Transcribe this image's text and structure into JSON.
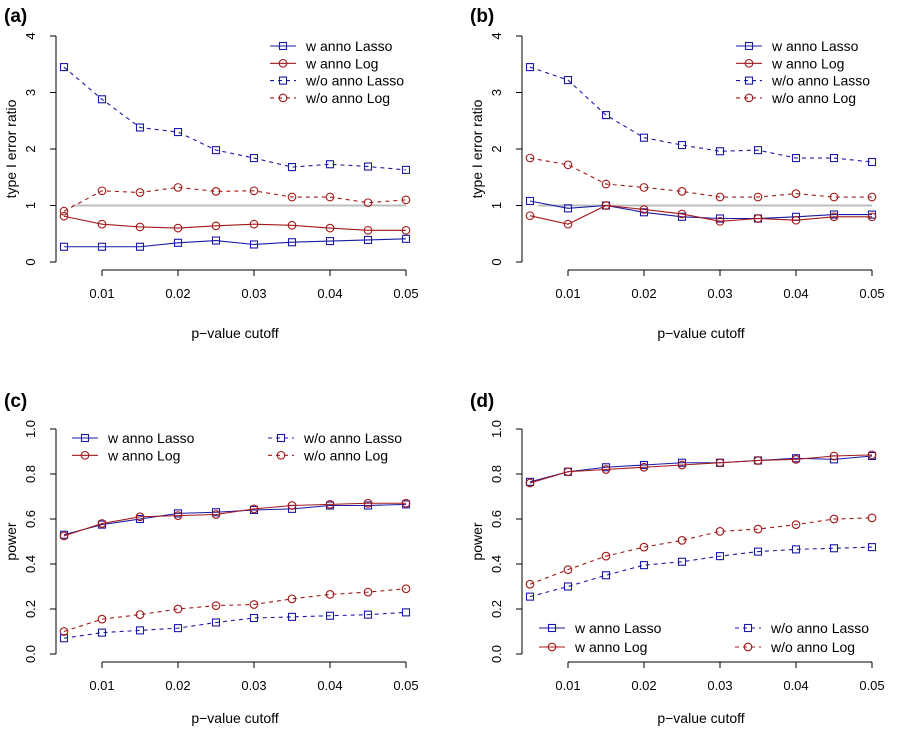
{
  "colors": {
    "lasso": "#1a1aa6",
    "log": "#a31818",
    "refline": "#bdbdbd"
  },
  "chart_data": [
    {
      "panel": "(a)",
      "type": "line",
      "xlabel": "p−value cutoff",
      "ylabel": "type I error ratio",
      "xlim": [
        0.005,
        0.05
      ],
      "ylim": [
        0,
        4
      ],
      "xticks": [
        0.01,
        0.02,
        0.03,
        0.04,
        0.05
      ],
      "xtick_labels": [
        "0.01",
        "0.02",
        "0.03",
        "0.04",
        "0.05"
      ],
      "yticks": [
        0,
        1,
        2,
        3,
        4
      ],
      "ytick_labels": [
        "0",
        "1",
        "2",
        "3",
        "4"
      ],
      "refline": 1,
      "legend_position": "top-right",
      "x": [
        0.005,
        0.01,
        0.015,
        0.02,
        0.025,
        0.03,
        0.035,
        0.04,
        0.045,
        0.05
      ],
      "series": [
        {
          "name": "w anno Lasso",
          "values": [
            0.27,
            0.27,
            0.27,
            0.34,
            0.38,
            0.31,
            0.35,
            0.37,
            0.39,
            0.41
          ]
        },
        {
          "name": "w anno Log",
          "values": [
            0.81,
            0.67,
            0.62,
            0.6,
            0.64,
            0.67,
            0.65,
            0.6,
            0.56,
            0.56
          ]
        },
        {
          "name": "w/o anno Lasso",
          "values": [
            3.45,
            2.88,
            2.38,
            2.3,
            1.98,
            1.84,
            1.68,
            1.73,
            1.69,
            1.63
          ]
        },
        {
          "name": "w/o anno Log",
          "values": [
            0.9,
            1.26,
            1.23,
            1.32,
            1.25,
            1.26,
            1.15,
            1.15,
            1.05,
            1.1
          ]
        }
      ]
    },
    {
      "panel": "(b)",
      "type": "line",
      "xlabel": "p−value cutoff",
      "ylabel": "type I error ratio",
      "xlim": [
        0.005,
        0.05
      ],
      "ylim": [
        0,
        4
      ],
      "xticks": [
        0.01,
        0.02,
        0.03,
        0.04,
        0.05
      ],
      "xtick_labels": [
        "0.01",
        "0.02",
        "0.03",
        "0.04",
        "0.05"
      ],
      "yticks": [
        0,
        1,
        2,
        3,
        4
      ],
      "ytick_labels": [
        "0",
        "1",
        "2",
        "3",
        "4"
      ],
      "refline": 1,
      "legend_position": "top-right",
      "x": [
        0.005,
        0.01,
        0.015,
        0.02,
        0.025,
        0.03,
        0.035,
        0.04,
        0.045,
        0.05
      ],
      "series": [
        {
          "name": "w anno Lasso",
          "values": [
            1.08,
            0.95,
            1.0,
            0.88,
            0.8,
            0.77,
            0.77,
            0.8,
            0.84,
            0.84
          ]
        },
        {
          "name": "w anno Log",
          "values": [
            0.82,
            0.67,
            1.0,
            0.93,
            0.85,
            0.72,
            0.77,
            0.74,
            0.8,
            0.8
          ]
        },
        {
          "name": "w/o anno Lasso",
          "values": [
            3.45,
            3.22,
            2.6,
            2.2,
            2.07,
            1.96,
            1.98,
            1.84,
            1.84,
            1.77
          ]
        },
        {
          "name": "w/o anno Log",
          "values": [
            1.84,
            1.72,
            1.38,
            1.32,
            1.25,
            1.15,
            1.15,
            1.21,
            1.15,
            1.15
          ]
        }
      ]
    },
    {
      "panel": "(c)",
      "type": "line",
      "xlabel": "p−value cutoff",
      "ylabel": "power",
      "xlim": [
        0.005,
        0.05
      ],
      "ylim": [
        0,
        1
      ],
      "xticks": [
        0.01,
        0.02,
        0.03,
        0.04,
        0.05
      ],
      "xtick_labels": [
        "0.01",
        "0.02",
        "0.03",
        "0.04",
        "0.05"
      ],
      "yticks": [
        0,
        0.2,
        0.4,
        0.6,
        0.8,
        1
      ],
      "ytick_labels": [
        "0.0",
        "0.2",
        "0.4",
        "0.6",
        "0.8",
        "1.0"
      ],
      "refline": null,
      "legend_position": "top",
      "x": [
        0.005,
        0.01,
        0.015,
        0.02,
        0.025,
        0.03,
        0.035,
        0.04,
        0.045,
        0.05
      ],
      "series": [
        {
          "name": "w anno Lasso",
          "values": [
            0.53,
            0.575,
            0.6,
            0.625,
            0.63,
            0.64,
            0.645,
            0.66,
            0.66,
            0.665
          ]
        },
        {
          "name": "w anno Log",
          "values": [
            0.525,
            0.58,
            0.61,
            0.615,
            0.62,
            0.645,
            0.66,
            0.665,
            0.67,
            0.67
          ]
        },
        {
          "name": "w/o anno Lasso",
          "values": [
            0.07,
            0.095,
            0.105,
            0.115,
            0.14,
            0.16,
            0.165,
            0.17,
            0.175,
            0.185
          ]
        },
        {
          "name": "w/o anno Log",
          "values": [
            0.1,
            0.155,
            0.175,
            0.2,
            0.215,
            0.22,
            0.245,
            0.265,
            0.275,
            0.29
          ]
        }
      ]
    },
    {
      "panel": "(d)",
      "type": "line",
      "xlabel": "p−value cutoff",
      "ylabel": "power",
      "xlim": [
        0.005,
        0.05
      ],
      "ylim": [
        0,
        1
      ],
      "xticks": [
        0.01,
        0.02,
        0.03,
        0.04,
        0.05
      ],
      "xtick_labels": [
        "0.01",
        "0.02",
        "0.03",
        "0.04",
        "0.05"
      ],
      "yticks": [
        0,
        0.2,
        0.4,
        0.6,
        0.8,
        1
      ],
      "ytick_labels": [
        "0.0",
        "0.2",
        "0.4",
        "0.6",
        "0.8",
        "1.0"
      ],
      "refline": null,
      "legend_position": "bottom",
      "x": [
        0.005,
        0.01,
        0.015,
        0.02,
        0.025,
        0.03,
        0.035,
        0.04,
        0.045,
        0.05
      ],
      "series": [
        {
          "name": "w anno Lasso",
          "values": [
            0.765,
            0.81,
            0.83,
            0.84,
            0.85,
            0.85,
            0.86,
            0.87,
            0.865,
            0.88
          ]
        },
        {
          "name": "w anno Log",
          "values": [
            0.76,
            0.81,
            0.82,
            0.83,
            0.84,
            0.85,
            0.86,
            0.865,
            0.88,
            0.885
          ]
        },
        {
          "name": "w/o anno Lasso",
          "values": [
            0.255,
            0.3,
            0.35,
            0.395,
            0.41,
            0.435,
            0.455,
            0.465,
            0.47,
            0.475
          ]
        },
        {
          "name": "w/o anno Log",
          "values": [
            0.31,
            0.375,
            0.435,
            0.475,
            0.505,
            0.545,
            0.555,
            0.575,
            0.6,
            0.605
          ]
        }
      ]
    }
  ]
}
